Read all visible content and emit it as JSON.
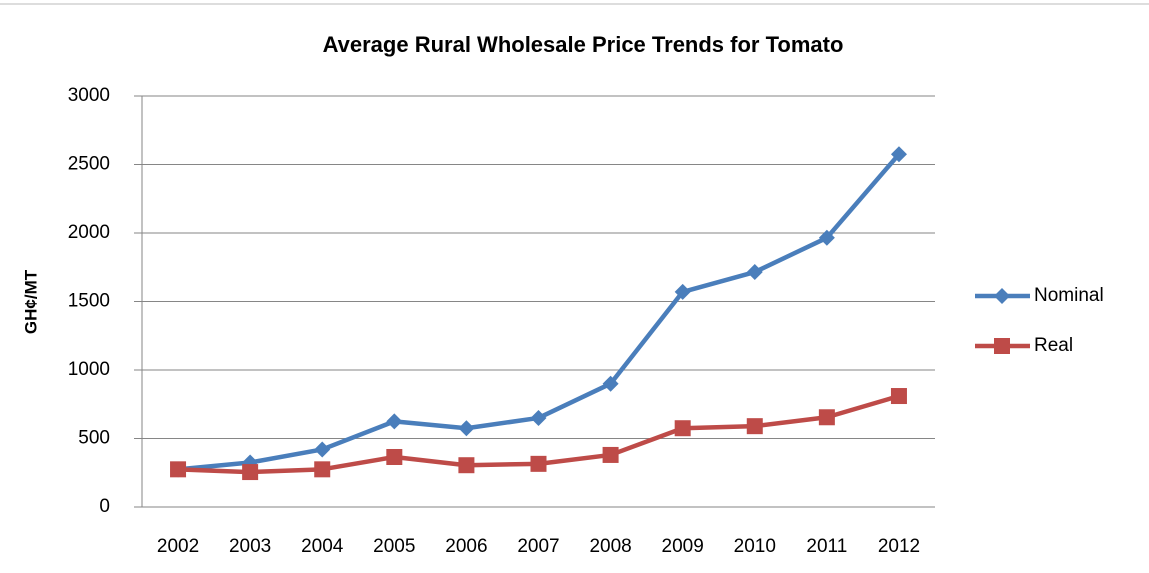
{
  "chart_data": {
    "type": "line",
    "title": "Average Rural Wholesale Price Trends for Tomato",
    "y_label": "GH¢/MT",
    "categories": [
      "2002",
      "2003",
      "2004",
      "2005",
      "2006",
      "2007",
      "2008",
      "2009",
      "2010",
      "2011",
      "2012"
    ],
    "series": [
      {
        "name": "Nominal",
        "color": "#4a7ebb",
        "marker": "diamond",
        "values": [
          275,
          325,
          420,
          625,
          575,
          650,
          900,
          1570,
          1715,
          1965,
          2575
        ]
      },
      {
        "name": "Real",
        "color": "#be4b48",
        "marker": "square",
        "values": [
          275,
          255,
          275,
          365,
          305,
          315,
          380,
          575,
          590,
          655,
          810
        ]
      }
    ],
    "ylim": [
      0,
      3000
    ],
    "yticks": [
      0,
      500,
      1000,
      1500,
      2000,
      2500,
      3000
    ],
    "grid": true,
    "legend": "right"
  }
}
